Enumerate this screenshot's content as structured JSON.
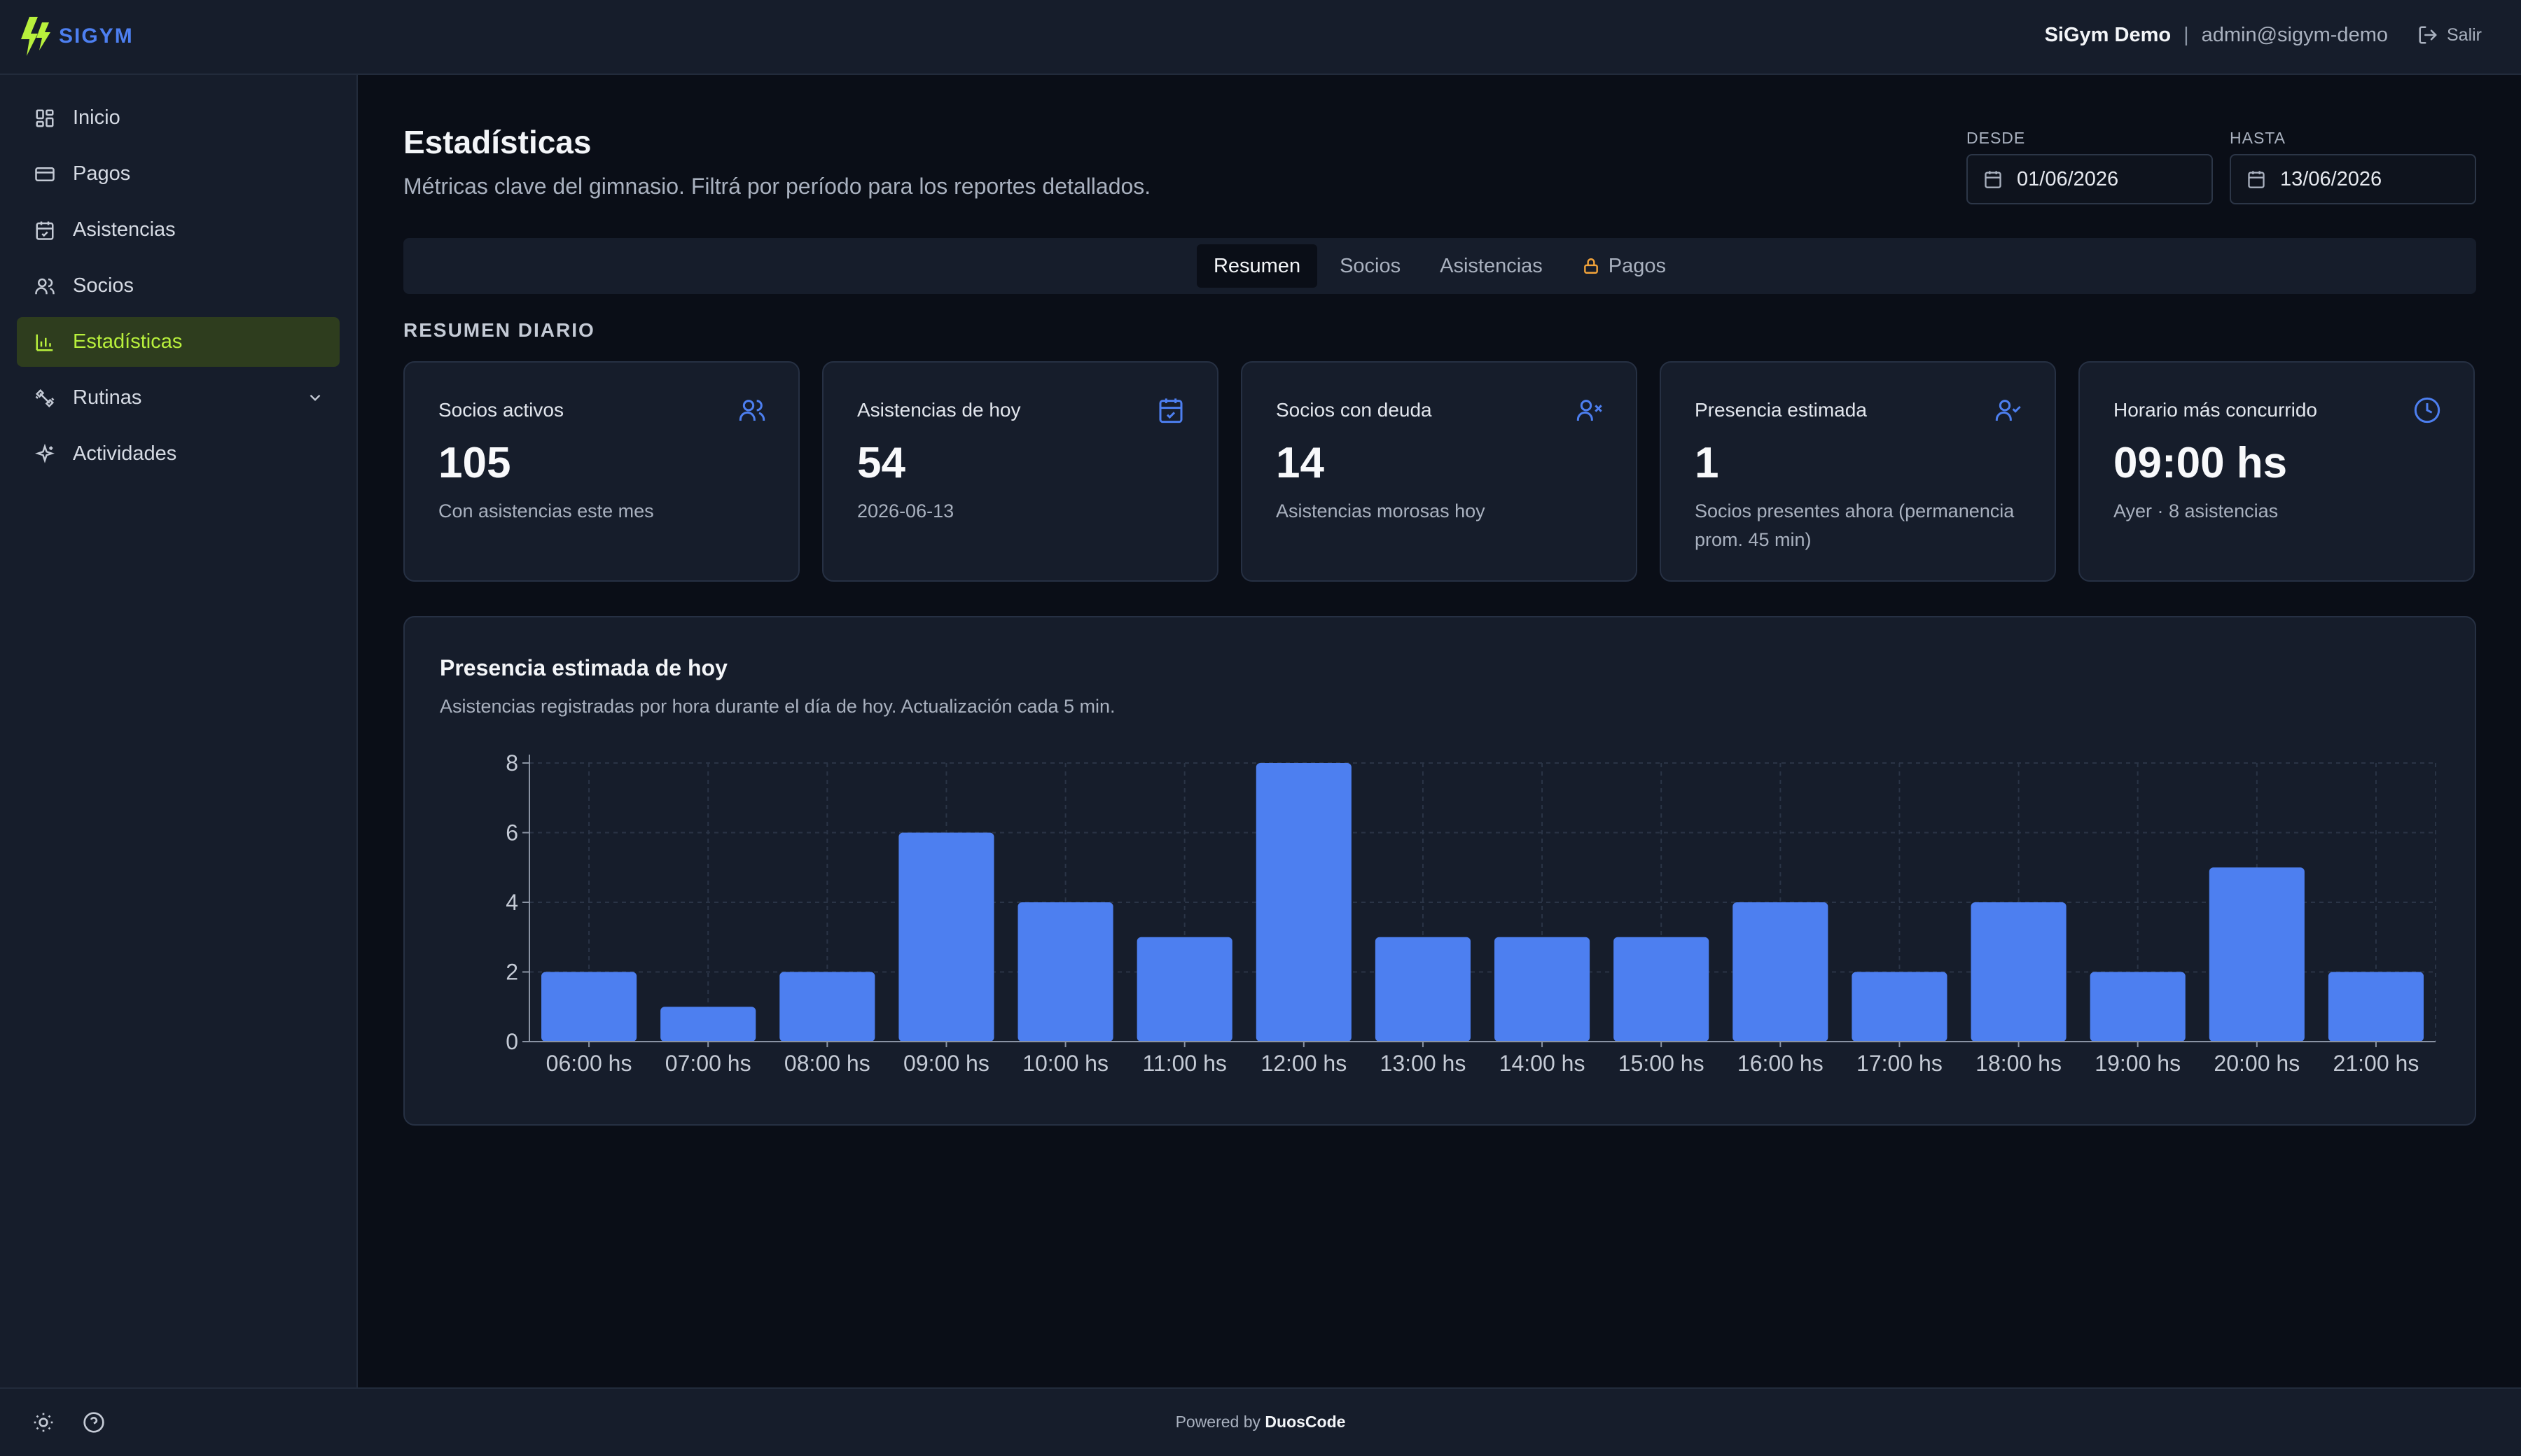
{
  "app": {
    "logo_text": "SIGYM",
    "user_name": "SiGym Demo",
    "user_separator": "|",
    "user_email": "admin@sigym-demo",
    "logout_label": "Salir"
  },
  "sidebar": {
    "items": [
      {
        "label": "Inicio",
        "icon": "grid-icon"
      },
      {
        "label": "Pagos",
        "icon": "credit-card-icon"
      },
      {
        "label": "Asistencias",
        "icon": "calendar-check-icon"
      },
      {
        "label": "Socios",
        "icon": "users-icon"
      },
      {
        "label": "Estadísticas",
        "icon": "bar-chart-icon",
        "active": true
      },
      {
        "label": "Rutinas",
        "icon": "dumbbell-icon",
        "expandable": true
      },
      {
        "label": "Actividades",
        "icon": "sparkles-icon"
      }
    ]
  },
  "footer": {
    "powered_prefix": "Powered by",
    "powered_brand": "DuosCode"
  },
  "page": {
    "title": "Estadísticas",
    "subtitle": "Métricas clave del gimnasio. Filtrá por período para los reportes detallados."
  },
  "filters": {
    "from_label": "DESDE",
    "from_value": "01/06/2026",
    "to_label": "HASTA",
    "to_value": "13/06/2026"
  },
  "tabs": [
    {
      "label": "Resumen",
      "active": true
    },
    {
      "label": "Socios"
    },
    {
      "label": "Asistencias"
    },
    {
      "label": "Pagos",
      "locked": true
    }
  ],
  "summary": {
    "section_title": "RESUMEN DIARIO",
    "cards": [
      {
        "title": "Socios activos",
        "value": "105",
        "desc": "Con asistencias este mes",
        "icon": "users-icon"
      },
      {
        "title": "Asistencias de hoy",
        "value": "54",
        "desc": "2026-06-13",
        "icon": "calendar-check-icon"
      },
      {
        "title": "Socios con deuda",
        "value": "14",
        "desc": "Asistencias morosas hoy",
        "icon": "user-x-icon"
      },
      {
        "title": "Presencia estimada",
        "value": "1",
        "desc": "Socios presentes ahora (permanencia prom. 45 min)",
        "icon": "user-check-icon"
      },
      {
        "title": "Horario más concurrido",
        "value": "09:00 hs",
        "desc": "Ayer · 8 asistencias",
        "icon": "clock-icon"
      }
    ]
  },
  "colors": {
    "accent": "#b8f03c",
    "bar": "#4d7ff0",
    "icon_blue": "#4d7ff0",
    "lock_orange": "#f2a33a"
  },
  "chart_data": {
    "type": "bar",
    "title": "Presencia estimada de hoy",
    "subtitle": "Asistencias registradas por hora durante el día de hoy. Actualización cada 5 min.",
    "categories": [
      "06:00 hs",
      "07:00 hs",
      "08:00 hs",
      "09:00 hs",
      "10:00 hs",
      "11:00 hs",
      "12:00 hs",
      "13:00 hs",
      "14:00 hs",
      "15:00 hs",
      "16:00 hs",
      "17:00 hs",
      "18:00 hs",
      "19:00 hs",
      "20:00 hs",
      "21:00 hs"
    ],
    "values": [
      2,
      1,
      2,
      6,
      4,
      3,
      8,
      3,
      3,
      3,
      4,
      2,
      4,
      2,
      5,
      2
    ],
    "ylim": [
      0,
      8
    ],
    "yticks": [
      0,
      2,
      4,
      6,
      8
    ],
    "grid": true,
    "legend": "none"
  }
}
